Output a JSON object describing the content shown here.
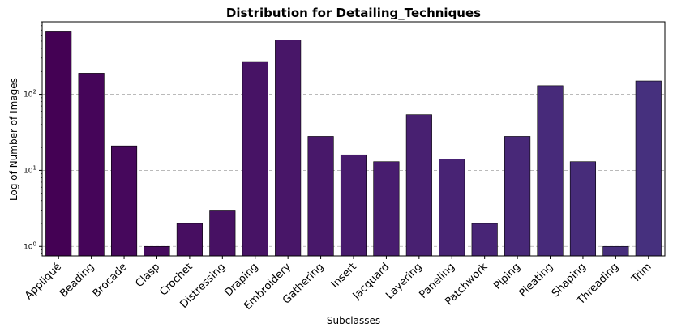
{
  "chart_data": {
    "type": "bar",
    "title": "Distribution for Detailing_Techniques",
    "xlabel": "Subclasses",
    "ylabel": "Log of Number of Images",
    "yscale": "log",
    "ylim": [
      0.75,
      900
    ],
    "yticks": [
      {
        "value": 1,
        "base": "10",
        "exp": "0"
      },
      {
        "value": 10,
        "base": "10",
        "exp": "1"
      },
      {
        "value": 100,
        "base": "10",
        "exp": "2"
      }
    ],
    "grid": "y-major-dashed",
    "categories": [
      "Appliqué",
      "Beading",
      "Brocade",
      "Clasp",
      "Crochet",
      "Distressing",
      "Draping",
      "Embroidery",
      "Gathering",
      "Insert",
      "Jacquard",
      "Layering",
      "Paneling",
      "Patchwork",
      "Piping",
      "Pleating",
      "Shaping",
      "Threading",
      "Trim"
    ],
    "values": [
      680,
      190,
      21,
      1,
      2,
      3,
      270,
      520,
      28,
      16,
      13,
      54,
      14,
      2,
      28,
      130,
      13,
      1,
      150
    ],
    "colors": [
      "#440154",
      "#450559",
      "#46085c",
      "#460b5e",
      "#470e61",
      "#471163",
      "#471365",
      "#481668",
      "#48186a",
      "#481b6d",
      "#481d6f",
      "#482071",
      "#482374",
      "#482576",
      "#482878",
      "#472a7a",
      "#472c7a",
      "#472e7c",
      "#46307e"
    ]
  }
}
